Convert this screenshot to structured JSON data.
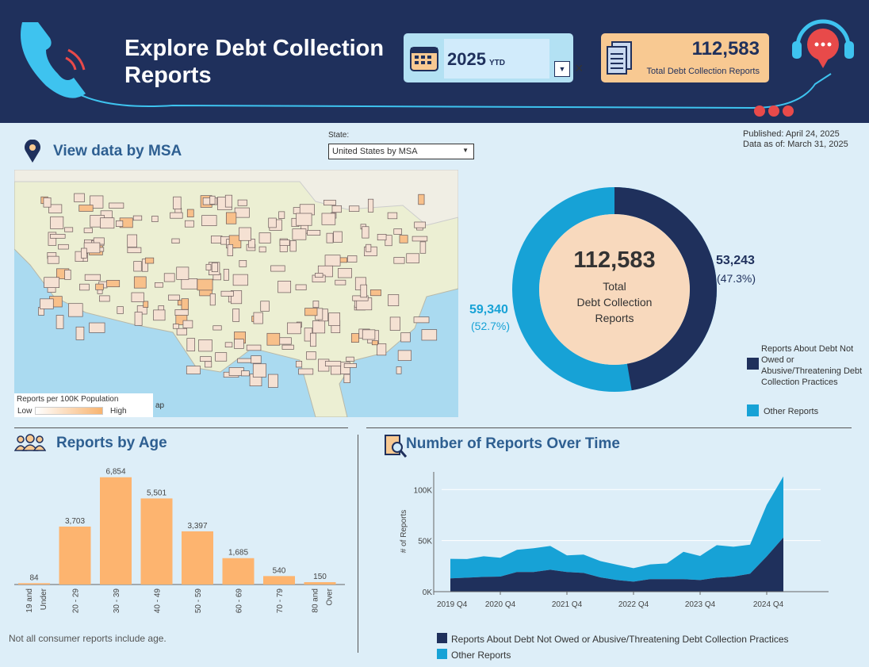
{
  "header": {
    "title": "Explore Debt Collection Reports",
    "date_filter": {
      "year": "2025",
      "suffix": "YTD"
    },
    "total": {
      "value": "112,583",
      "label": "Total Debt Collection Reports"
    }
  },
  "meta": {
    "published": "Published: April 24, 2025",
    "data_as_of": "Data as of: March 31, 2025"
  },
  "msa": {
    "title": "View data by MSA",
    "state_label": "State:",
    "state_value": "United States by MSA",
    "legend_title": "Reports per 100K Population",
    "legend_low": "Low",
    "legend_high": "High",
    "map_fragment": "ap"
  },
  "donut": {
    "center_value": "112,583",
    "center_l1": "Total",
    "center_l2": "Debt Collection",
    "center_l3": "Reports",
    "dark_value": "53,243",
    "dark_pct": "(47.3%)",
    "light_value": "59,340",
    "light_pct": "(52.7%)",
    "legend": [
      "Reports About Debt Not Owed or Abusive/Threatening Debt Collection Practices",
      "Other Reports"
    ],
    "colors": {
      "dark": "#1f305c",
      "light": "#17a2d6",
      "center": "#f8d9bd"
    }
  },
  "age": {
    "title": "Reports by Age",
    "note": "Not all consumer reports include age.",
    "color": "#fdb46f",
    "chart_data": {
      "type": "bar",
      "categories": [
        "19 and Under",
        "20 - 29",
        "30 - 39",
        "40 - 49",
        "50 - 59",
        "60 - 69",
        "70 - 79",
        "80 and Over"
      ],
      "values": [
        84,
        3703,
        6854,
        5501,
        3397,
        1685,
        540,
        150
      ],
      "labels": [
        "84",
        "3,703",
        "6,854",
        "5,501",
        "3,397",
        "1,685",
        "540",
        "150"
      ]
    }
  },
  "time": {
    "title": "Number of Reports Over Time",
    "chart_data": {
      "type": "area",
      "stacked": true,
      "ylabel": "# of Reports",
      "yticks": [
        "0K",
        "50K",
        "100K"
      ],
      "ylim": [
        0,
        120000
      ],
      "xticks": [
        "2019 Q4",
        "2020 Q4",
        "2021 Q4",
        "2022 Q4",
        "2023 Q4",
        "2024 Q4"
      ],
      "x": [
        "2020 Q1",
        "2020 Q2",
        "2020 Q3",
        "2020 Q4",
        "2021 Q1",
        "2021 Q2",
        "2021 Q3",
        "2021 Q4",
        "2022 Q1",
        "2022 Q2",
        "2022 Q3",
        "2022 Q4",
        "2023 Q1",
        "2023 Q2",
        "2023 Q3",
        "2023 Q4",
        "2024 Q1",
        "2024 Q2",
        "2024 Q3",
        "2024 Q4",
        "2025 Q1"
      ],
      "series": [
        {
          "name": "Reports About Debt Not Owed or Abusive/Threatening Debt Collection Practices",
          "color": "#1f305c",
          "values": [
            13000,
            13700,
            14500,
            14800,
            19200,
            19200,
            21500,
            19200,
            18400,
            14000,
            11400,
            9800,
            12200,
            12200,
            12200,
            11400,
            13700,
            14800,
            17600,
            34500,
            53000
          ]
        },
        {
          "name": "Other Reports",
          "color": "#17a2d6",
          "values": [
            19100,
            18300,
            20200,
            18400,
            21800,
            23300,
            23300,
            16300,
            17900,
            16000,
            15000,
            13200,
            14500,
            15500,
            26800,
            23600,
            31900,
            29200,
            28400,
            50500,
            60000
          ]
        }
      ]
    }
  }
}
